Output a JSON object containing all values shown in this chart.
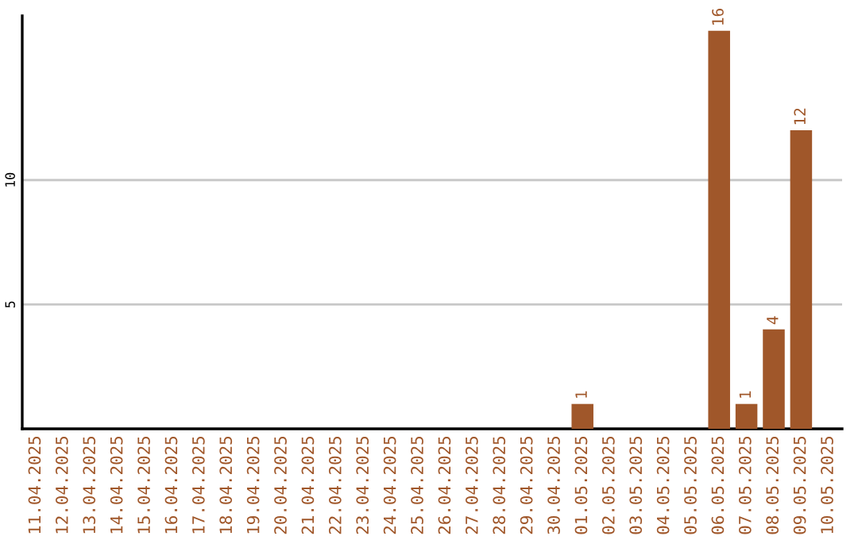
{
  "chart_data": {
    "type": "bar",
    "categories": [
      "11.04.2025",
      "12.04.2025",
      "13.04.2025",
      "14.04.2025",
      "15.04.2025",
      "16.04.2025",
      "17.04.2025",
      "18.04.2025",
      "19.04.2025",
      "20.04.2025",
      "21.04.2025",
      "22.04.2025",
      "23.04.2025",
      "24.04.2025",
      "25.04.2025",
      "26.04.2025",
      "27.04.2025",
      "28.04.2025",
      "29.04.2025",
      "30.04.2025",
      "01.05.2025",
      "02.05.2025",
      "03.05.2025",
      "04.05.2025",
      "05.05.2025",
      "06.05.2025",
      "07.05.2025",
      "08.05.2025",
      "09.05.2025",
      "10.05.2025"
    ],
    "values": [
      0,
      0,
      0,
      0,
      0,
      0,
      0,
      0,
      0,
      0,
      0,
      0,
      0,
      0,
      0,
      0,
      0,
      0,
      0,
      0,
      1,
      0,
      0,
      0,
      0,
      16,
      1,
      4,
      12,
      0
    ],
    "value_labels": [
      null,
      null,
      null,
      null,
      null,
      null,
      null,
      null,
      null,
      null,
      null,
      null,
      null,
      null,
      null,
      null,
      null,
      null,
      null,
      null,
      "1",
      null,
      null,
      null,
      null,
      "16",
      "1",
      "4",
      "12",
      null
    ],
    "color": "#a0572a",
    "ylim": [
      0,
      16.6
    ],
    "yticks": [
      5,
      10
    ],
    "grid": "y"
  }
}
